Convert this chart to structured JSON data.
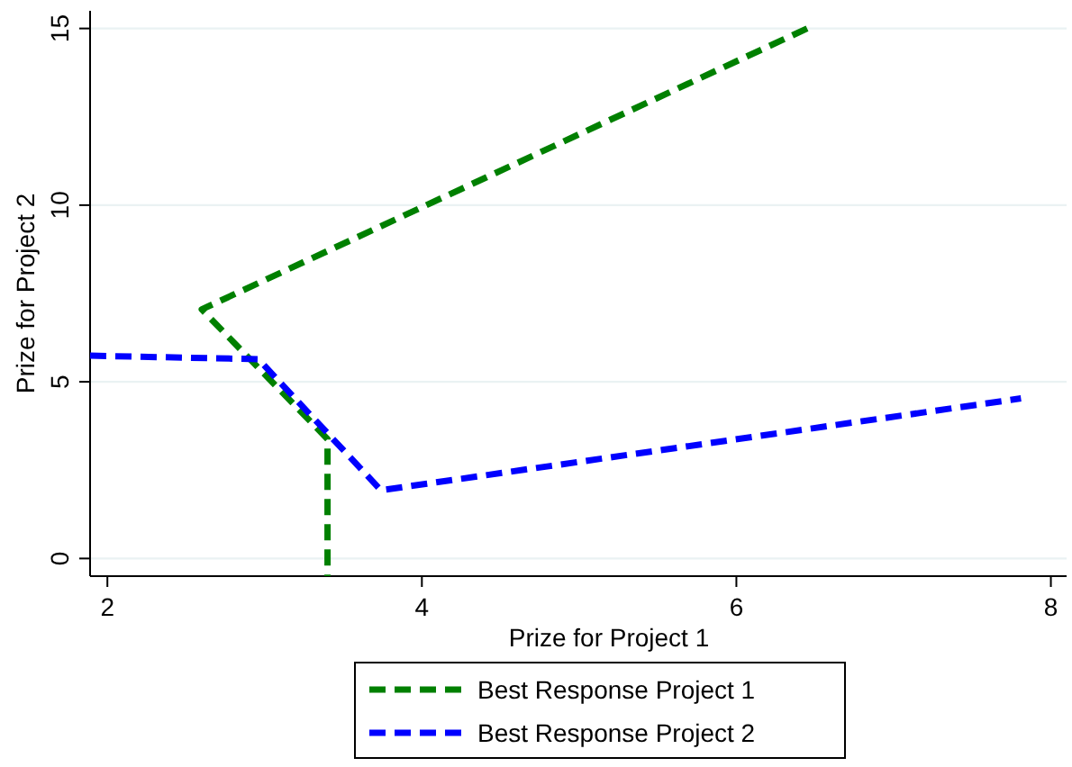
{
  "chart_data": {
    "type": "line",
    "xlabel": "Prize for Project 1",
    "ylabel": "Prize for Project 2",
    "xlim": [
      1.89,
      8.1
    ],
    "xticks": [
      2,
      4,
      6,
      8
    ],
    "ylim": [
      -0.5,
      15.5
    ],
    "yticks": [
      0,
      5,
      10,
      15
    ],
    "grid": "y",
    "legend": "bottom",
    "line_style": "dashed",
    "marker": "none",
    "series": [
      {
        "name": "Best Response Project 1",
        "color": "#008000",
        "x": [
          6.45,
          2.6,
          3.4,
          3.4
        ],
        "values": [
          15,
          7.05,
          3.38,
          -0.5
        ]
      },
      {
        "name": "Best Response Project 2",
        "color": "#0000ff",
        "x": [
          1.89,
          2.96,
          3.74,
          7.81
        ],
        "values": [
          5.74,
          5.64,
          1.93,
          4.53
        ]
      }
    ]
  }
}
